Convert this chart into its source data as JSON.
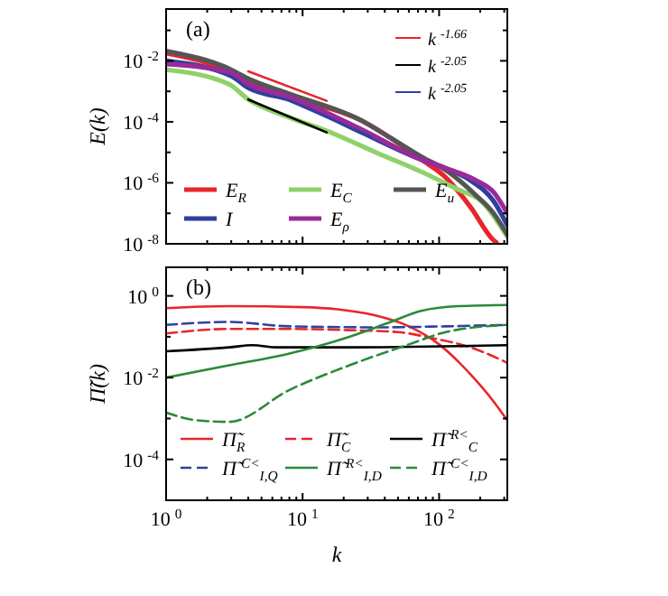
{
  "chart_data": [
    {
      "type": "line",
      "ylabel": "E(k)",
      "annotations": [
        "(a)"
      ],
      "log": "xy",
      "xlim": [
        1,
        316
      ],
      "ylim": [
        1e-08,
        0.5
      ],
      "tick_labels": "y",
      "legend": "bottom left",
      "xticks": [
        1,
        {
          "value": 2,
          "label": null
        },
        {
          "value": 3,
          "label": null
        },
        {
          "value": 4,
          "label": null
        },
        {
          "value": 5,
          "label": null
        },
        {
          "value": 6,
          "label": null
        },
        {
          "value": 7,
          "label": null
        },
        {
          "value": 8,
          "label": null
        },
        {
          "value": 9,
          "label": null
        },
        10,
        {
          "value": 20,
          "label": null
        },
        {
          "value": 30,
          "label": null
        },
        {
          "value": 40,
          "label": null
        },
        {
          "value": 50,
          "label": null
        },
        {
          "value": 60,
          "label": null
        },
        {
          "value": 70,
          "label": null
        },
        {
          "value": 80,
          "label": null
        },
        {
          "value": 90,
          "label": null
        },
        100,
        {
          "value": 200,
          "label": null
        },
        {
          "value": 300,
          "label": null
        }
      ],
      "yticks": [
        {
          "value": 0.1,
          "label": null
        },
        {
          "value": 0.01,
          "label": "10$^{-2}$"
        },
        {
          "value": 0.001,
          "label": null
        },
        {
          "value": 0.0001,
          "label": "10$^{-4}$"
        },
        {
          "value": 1e-05,
          "label": null
        },
        {
          "value": 1e-06,
          "label": "10$^{-6}$"
        },
        {
          "value": 1e-07,
          "label": null
        },
        {
          "value": 1e-08,
          "label": "10$^{-8}$"
        }
      ],
      "series": [
        {
          "name": "E$_{R}$",
          "color": "#e8262a",
          "line_style": "solid",
          "x": [
            1,
            3,
            4,
            8,
            27,
            45,
            74,
            112,
            170,
            251,
            263
          ],
          "values": [
            0.018,
            0.0041,
            0.002,
            0.00066,
            0.00011,
            2.8e-05,
            5.8e-06,
            1.5e-06,
            1.6e-07,
            1.3e-08,
            1.1e-08
          ]
        },
        {
          "name": "E$_{C}$",
          "color": "#8fd16a",
          "line_style": "solid",
          "x": [
            1,
            2.9,
            4,
            8,
            16,
            36,
            74,
            138,
            204,
            316
          ],
          "values": [
            0.0051,
            0.0017,
            0.00054,
            0.00014,
            4.5e-05,
            9.1e-06,
            2.3e-06,
            6e-07,
            2.5e-07,
            1.7e-08
          ]
        },
        {
          "name": "E$_{u}$",
          "color": "#555555",
          "line_style": "solid",
          "x": [
            1,
            3,
            4,
            8,
            27,
            45,
            74,
            112,
            186,
            251,
            316
          ],
          "values": [
            0.021,
            0.0051,
            0.0026,
            0.00083,
            0.00011,
            2.8e-05,
            7.2e-06,
            2.6e-06,
            3.9e-07,
            1e-07,
            2e-08
          ]
        },
        {
          "name": "I",
          "color": "#2e3f9e",
          "line_style": "solid",
          "x": [
            1,
            3,
            4,
            8,
            27,
            74,
            112,
            170,
            251,
            316
          ],
          "values": [
            0.01,
            0.0032,
            0.0013,
            0.00054,
            4.5e-05,
            5.8e-06,
            3e-06,
            1.2e-06,
            2.5e-07,
            4.1e-08
          ]
        },
        {
          "name": "E$_{ρ}$",
          "color": "#9a2a9a",
          "line_style": "solid",
          "x": [
            1,
            3,
            4,
            8,
            27,
            74,
            112,
            186,
            251,
            316
          ],
          "values": [
            0.0079,
            0.0041,
            0.0017,
            0.00066,
            5.6e-05,
            5.8e-06,
            3e-06,
            1.2e-06,
            4.9e-07,
            1e-07
          ]
        },
        {
          "name": "k$^{-1.66}$",
          "color": "#e8262a",
          "line_style": "solid",
          "x": [
            4,
            15
          ],
          "values": [
            0.0045,
            0.00049
          ]
        },
        {
          "name": "k$^{-2.05}$",
          "color": "#000000",
          "line_style": "solid",
          "x": [
            4,
            15
          ],
          "values": [
            0.00054,
            4.5e-05
          ]
        },
        {
          "name": "k$^{-2.05}$",
          "color": "#3040a0",
          "line_style": "solid",
          "x": [
            8,
            32
          ],
          "values": [
            0.00049,
            3.2e-05
          ]
        }
      ]
    },
    {
      "type": "line",
      "xlabel": "k",
      "ylabel": "Π̃(k)",
      "annotations": [
        "(b)"
      ],
      "log": "xy",
      "xlim": [
        1,
        316
      ],
      "ylim": [
        1e-05,
        5
      ],
      "legend": "bottom",
      "xticks": [
        {
          "value": 1,
          "label": "10$^{0}$"
        },
        {
          "value": 2,
          "label": null
        },
        {
          "value": 3,
          "label": null
        },
        {
          "value": 4,
          "label": null
        },
        {
          "value": 5,
          "label": null
        },
        {
          "value": 6,
          "label": null
        },
        {
          "value": 7,
          "label": null
        },
        {
          "value": 8,
          "label": null
        },
        {
          "value": 9,
          "label": null
        },
        {
          "value": 10,
          "label": "10$^{1}$"
        },
        {
          "value": 20,
          "label": null
        },
        {
          "value": 30,
          "label": null
        },
        {
          "value": 40,
          "label": null
        },
        {
          "value": 50,
          "label": null
        },
        {
          "value": 60,
          "label": null
        },
        {
          "value": 70,
          "label": null
        },
        {
          "value": 80,
          "label": null
        },
        {
          "value": 90,
          "label": null
        },
        {
          "value": 100,
          "label": "10$^{2}$"
        },
        {
          "value": 200,
          "label": null
        },
        {
          "value": 300,
          "label": null
        }
      ],
      "yticks": [
        {
          "value": 1,
          "label": "10$^{0}$"
        },
        {
          "value": 0.1,
          "label": null
        },
        {
          "value": 0.01,
          "label": "10$^{-2}$"
        },
        {
          "value": 0.001,
          "label": null
        },
        {
          "value": 0.0001,
          "label": "10$^{-4}$"
        },
        {
          "value": 1e-05,
          "label": null
        }
      ],
      "series": [
        {
          "name": "Π̃$_{R}$",
          "color": "#e8262a",
          "line_style": "solid",
          "x": [
            1,
            2.9,
            10,
            18,
            33,
            60,
            100,
            170,
            251,
            316
          ],
          "values": [
            0.5,
            0.56,
            0.53,
            0.47,
            0.34,
            0.18,
            0.065,
            0.012,
            0.0026,
            0.0009
          ]
        },
        {
          "name": "Π̃$_{C}$",
          "color": "#e8262a",
          "line_style": "dashed",
          "x": [
            1,
            2.9,
            8,
            22,
            50,
            91,
            170,
            316
          ],
          "values": [
            0.12,
            0.155,
            0.155,
            0.145,
            0.13,
            0.091,
            0.055,
            0.023
          ]
        },
        {
          "name": "Π̃$^{R<}$$_{C}$",
          "color": "#000000",
          "line_style": "solid",
          "x": [
            1,
            2.9,
            4.3,
            6.5,
            22,
            316
          ],
          "values": [
            0.044,
            0.055,
            0.062,
            0.055,
            0.055,
            0.062
          ]
        },
        {
          "name": "Π̃$^{C<}$$_{I,Q}$",
          "color": "#3040a0",
          "line_style": "dashed",
          "x": [
            1,
            2.9,
            8,
            36,
            112,
            316
          ],
          "values": [
            0.195,
            0.23,
            0.18,
            0.17,
            0.18,
            0.195
          ]
        },
        {
          "name": "Π̃$^{R<}$$_{I,D}$",
          "color": "#2a8a3a",
          "line_style": "solid",
          "x": [
            1,
            2.9,
            8,
            22,
            41,
            74,
            138,
            316
          ],
          "values": [
            0.01,
            0.02,
            0.039,
            0.1,
            0.21,
            0.43,
            0.56,
            0.6
          ]
        },
        {
          "name": "Π̃$^{C<}$$_{I,D}$",
          "color": "#2a8a3a",
          "line_style": "dashed",
          "x": [
            1,
            1.7,
            2.9,
            8,
            22,
            60,
            112,
            316
          ],
          "values": [
            0.0014,
            0.0009,
            0.00083,
            0.005,
            0.02,
            0.065,
            0.13,
            0.195
          ]
        }
      ]
    }
  ]
}
